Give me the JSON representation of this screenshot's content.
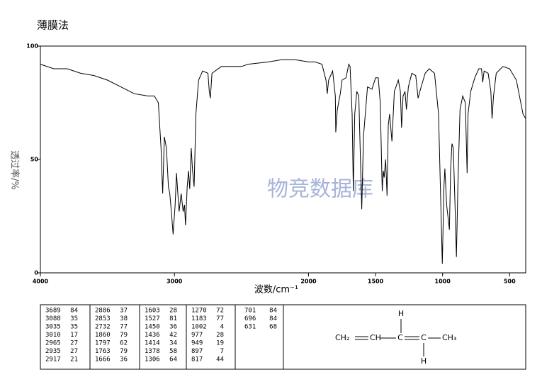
{
  "chart_data": {
    "type": "line",
    "title": "薄膜法",
    "xlabel": "波数/cm⁻¹",
    "ylabel": "透过率/%",
    "watermark": "物竞数据库",
    "xlim": [
      4000,
      380
    ],
    "ylim": [
      0,
      100
    ],
    "xticks": [
      4000,
      3000,
      2000,
      1500,
      1000,
      500
    ],
    "yticks": [
      0,
      50,
      100
    ],
    "color": "#000000",
    "x": [
      4000,
      3900,
      3800,
      3700,
      3600,
      3500,
      3400,
      3300,
      3200,
      3150,
      3120,
      3100,
      3088,
      3075,
      3060,
      3045,
      3035,
      3020,
      3010,
      2995,
      2985,
      2975,
      2965,
      2950,
      2935,
      2925,
      2917,
      2905,
      2895,
      2886,
      2875,
      2865,
      2853,
      2840,
      2820,
      2790,
      2750,
      2740,
      2732,
      2720,
      2650,
      2500,
      2450,
      2300,
      2200,
      2100,
      2000,
      1950,
      1900,
      1870,
      1860,
      1850,
      1820,
      1800,
      1797,
      1785,
      1763,
      1750,
      1720,
      1700,
      1690,
      1675,
      1666,
      1655,
      1640,
      1625,
      1603,
      1590,
      1560,
      1527,
      1500,
      1480,
      1465,
      1450,
      1443,
      1436,
      1425,
      1414,
      1405,
      1395,
      1378,
      1360,
      1330,
      1315,
      1306,
      1295,
      1280,
      1270,
      1255,
      1230,
      1200,
      1183,
      1160,
      1130,
      1100,
      1060,
      1030,
      1015,
      1002,
      990,
      983,
      970,
      949,
      940,
      930,
      920,
      905,
      897,
      885,
      870,
      850,
      830,
      817,
      810,
      790,
      760,
      730,
      710,
      701,
      690,
      660,
      640,
      631,
      620,
      600,
      550,
      500,
      450,
      400,
      380
    ],
    "values": [
      92,
      90,
      90,
      88,
      87,
      85,
      82,
      79,
      78,
      78,
      75,
      55,
      35,
      60,
      55,
      38,
      35,
      25,
      17,
      30,
      44,
      35,
      27,
      35,
      27,
      30,
      21,
      38,
      45,
      37,
      55,
      45,
      38,
      70,
      85,
      89,
      88,
      80,
      77,
      88,
      91,
      91,
      92,
      93,
      94,
      94,
      93,
      93,
      92,
      85,
      79,
      85,
      89,
      78,
      62,
      72,
      79,
      85,
      86,
      92,
      91,
      70,
      36,
      70,
      80,
      78,
      28,
      60,
      82,
      81,
      86,
      86,
      75,
      36,
      45,
      42,
      50,
      34,
      65,
      70,
      58,
      80,
      85,
      80,
      64,
      78,
      80,
      72,
      82,
      88,
      87,
      77,
      82,
      88,
      90,
      88,
      70,
      35,
      4,
      38,
      46,
      30,
      19,
      45,
      57,
      55,
      25,
      7,
      40,
      72,
      78,
      75,
      44,
      70,
      80,
      86,
      90,
      90,
      84,
      89,
      88,
      80,
      68,
      78,
      88,
      91,
      90,
      85,
      70,
      68
    ]
  },
  "peak_table": [
    [
      3689,
      84
    ],
    [
      3088,
      35
    ],
    [
      3035,
      35
    ],
    [
      3010,
      17
    ],
    [
      2965,
      27
    ],
    [
      2935,
      27
    ],
    [
      2917,
      21
    ],
    [
      2886,
      37
    ],
    [
      2853,
      38
    ],
    [
      2732,
      77
    ],
    [
      1860,
      79
    ],
    [
      1797,
      62
    ],
    [
      1763,
      79
    ],
    [
      1666,
      36
    ],
    [
      1603,
      28
    ],
    [
      1527,
      81
    ],
    [
      1450,
      36
    ],
    [
      1436,
      42
    ],
    [
      1414,
      34
    ],
    [
      1378,
      58
    ],
    [
      1306,
      64
    ],
    [
      1270,
      72
    ],
    [
      1183,
      77
    ],
    [
      1002,
      4
    ],
    [
      977,
      28
    ],
    [
      949,
      19
    ],
    [
      897,
      7
    ],
    [
      817,
      44
    ],
    [
      701,
      84
    ],
    [
      696,
      84
    ],
    [
      631,
      68
    ]
  ],
  "structure": {
    "labels": [
      "CH₂",
      "CH",
      "C",
      "C",
      "CH₃",
      "H",
      "H"
    ]
  }
}
